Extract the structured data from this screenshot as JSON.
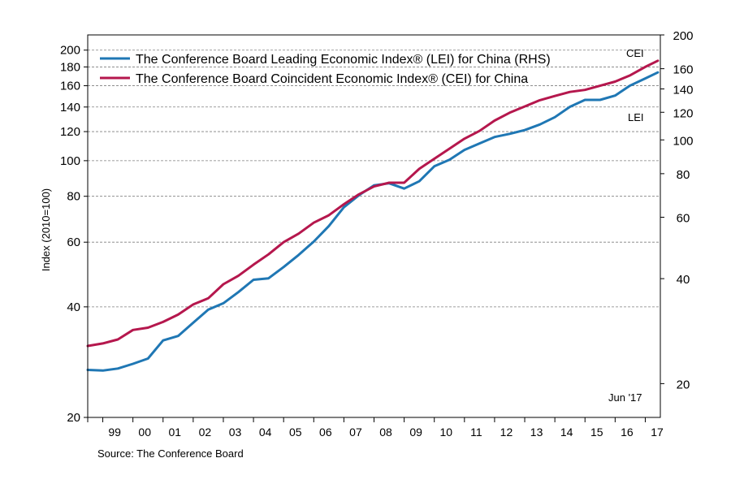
{
  "chart_data": {
    "type": "line",
    "title": "",
    "ylabel": "Index (2010=100)",
    "source": "Source: The Conference Board",
    "date_note": "Jun '17",
    "x_ticks": [
      "99",
      "00",
      "01",
      "02",
      "03",
      "04",
      "05",
      "06",
      "07",
      "08",
      "09",
      "10",
      "11",
      "12",
      "13",
      "14",
      "15",
      "16",
      "17"
    ],
    "left_axis": {
      "scale": "log",
      "range": [
        20,
        220
      ],
      "ticks": [
        20,
        40,
        60,
        80,
        100,
        120,
        140,
        160,
        180,
        200
      ]
    },
    "right_axis": {
      "scale": "log",
      "range": [
        16,
        200
      ],
      "ticks": [
        20,
        40,
        60,
        80,
        100,
        120,
        140,
        160,
        200
      ]
    },
    "grid": true,
    "legend_position": "top-left",
    "series": [
      {
        "name": "The Conference Board Leading Economic Index® (LEI) for China (RHS)",
        "label": "LEI",
        "axis": "right",
        "color": "#1f77b4",
        "points": [
          [
            "1998-07",
            21.9
          ],
          [
            "1999-01",
            21.8
          ],
          [
            "1999-07",
            22.1
          ],
          [
            "2000-01",
            22.8
          ],
          [
            "2000-07",
            23.6
          ],
          [
            "2001-01",
            26.6
          ],
          [
            "2001-07",
            27.4
          ],
          [
            "2002-01",
            29.9
          ],
          [
            "2002-07",
            32.6
          ],
          [
            "2003-01",
            34.0
          ],
          [
            "2003-07",
            36.6
          ],
          [
            "2004-01",
            39.7
          ],
          [
            "2004-07",
            40.1
          ],
          [
            "2005-01",
            43.2
          ],
          [
            "2005-07",
            46.8
          ],
          [
            "2006-01",
            51.1
          ],
          [
            "2006-07",
            56.6
          ],
          [
            "2007-01",
            64.1
          ],
          [
            "2007-07",
            69.4
          ],
          [
            "2008-01",
            74.1
          ],
          [
            "2008-07",
            75.1
          ],
          [
            "2009-01",
            72.5
          ],
          [
            "2009-07",
            76.1
          ],
          [
            "2010-01",
            84.0
          ],
          [
            "2010-07",
            87.7
          ],
          [
            "2011-01",
            93.6
          ],
          [
            "2011-07",
            97.7
          ],
          [
            "2012-01",
            101.9
          ],
          [
            "2012-07",
            104.1
          ],
          [
            "2013-01",
            106.7
          ],
          [
            "2013-07",
            110.7
          ],
          [
            "2014-01",
            116.2
          ],
          [
            "2014-07",
            124.4
          ],
          [
            "2015-01",
            130.2
          ],
          [
            "2015-07",
            130.2
          ],
          [
            "2016-01",
            134.0
          ],
          [
            "2016-07",
            143.2
          ],
          [
            "2017-01",
            150.0
          ],
          [
            "2017-06",
            156.1
          ]
        ]
      },
      {
        "name": "The Conference Board Coincident Economic Index® (CEI) for China",
        "label": "CEI",
        "axis": "left",
        "color": "#b5174d",
        "points": [
          [
            "1998-07",
            31.3
          ],
          [
            "1999-01",
            31.8
          ],
          [
            "1999-07",
            32.6
          ],
          [
            "2000-01",
            34.6
          ],
          [
            "2000-07",
            35.1
          ],
          [
            "2001-01",
            36.4
          ],
          [
            "2001-07",
            38.1
          ],
          [
            "2002-01",
            40.6
          ],
          [
            "2002-07",
            42.2
          ],
          [
            "2003-01",
            46.1
          ],
          [
            "2003-07",
            48.6
          ],
          [
            "2004-01",
            52.1
          ],
          [
            "2004-07",
            55.6
          ],
          [
            "2005-01",
            60.0
          ],
          [
            "2005-07",
            63.3
          ],
          [
            "2006-01",
            67.8
          ],
          [
            "2006-07",
            71.0
          ],
          [
            "2007-01",
            76.1
          ],
          [
            "2007-07",
            81.0
          ],
          [
            "2008-01",
            85.1
          ],
          [
            "2008-07",
            87.1
          ],
          [
            "2009-01",
            87.1
          ],
          [
            "2009-07",
            95.0
          ],
          [
            "2010-01",
            101.2
          ],
          [
            "2010-07",
            107.8
          ],
          [
            "2011-01",
            114.8
          ],
          [
            "2011-07",
            120.5
          ],
          [
            "2012-01",
            128.6
          ],
          [
            "2012-07",
            135.1
          ],
          [
            "2013-01",
            140.5
          ],
          [
            "2013-07",
            146.1
          ],
          [
            "2014-01",
            150.0
          ],
          [
            "2014-07",
            153.9
          ],
          [
            "2015-01",
            155.9
          ],
          [
            "2015-07",
            160.0
          ],
          [
            "2016-01",
            164.2
          ],
          [
            "2016-07",
            170.8
          ],
          [
            "2017-01",
            180.0
          ],
          [
            "2017-06",
            187.1
          ]
        ]
      }
    ]
  }
}
